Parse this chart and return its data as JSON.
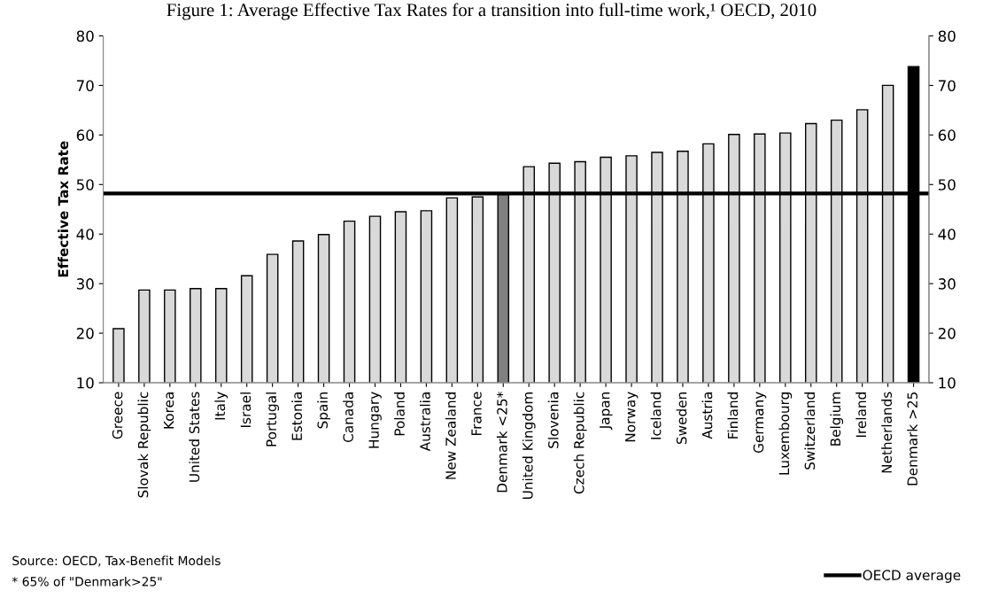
{
  "chart_data": {
    "type": "bar",
    "title": "Figure 1: Average Effective Tax Rates for a transition into full-time work,¹ OECD, 2010",
    "ylabel": "Effective Tax Rate",
    "categories": [
      "Greece",
      "Slovak Republic",
      "Korea",
      "United States",
      "Italy",
      "Israel",
      "Portugal",
      "Estonia",
      "Spain",
      "Canada",
      "Hungary",
      "Poland",
      "Australia",
      "New Zealand",
      "France",
      "Denmark <25*",
      "United Kingdom",
      "Slovenia",
      "Czech Republic",
      "Japan",
      "Norway",
      "Iceland",
      "Sweden",
      "Austria",
      "Finland",
      "Germany",
      "Luxembourg",
      "Switzerland",
      "Belgium",
      "Ireland",
      "Netherlands",
      "Denmark >25"
    ],
    "values": [
      20.9,
      28.7,
      28.7,
      29.0,
      29.0,
      31.6,
      35.9,
      38.6,
      39.9,
      42.6,
      43.6,
      44.5,
      44.7,
      47.3,
      47.5,
      48.0,
      53.6,
      54.3,
      54.6,
      55.5,
      55.8,
      56.5,
      56.7,
      58.2,
      60.1,
      60.2,
      60.4,
      62.3,
      63.0,
      65.1,
      70.0,
      73.8
    ],
    "colors": [
      "#d9d9d9",
      "#d9d9d9",
      "#d9d9d9",
      "#d9d9d9",
      "#d9d9d9",
      "#d9d9d9",
      "#d9d9d9",
      "#d9d9d9",
      "#d9d9d9",
      "#d9d9d9",
      "#d9d9d9",
      "#d9d9d9",
      "#d9d9d9",
      "#d9d9d9",
      "#d9d9d9",
      "#808080",
      "#d9d9d9",
      "#d9d9d9",
      "#d9d9d9",
      "#d9d9d9",
      "#d9d9d9",
      "#d9d9d9",
      "#d9d9d9",
      "#d9d9d9",
      "#d9d9d9",
      "#d9d9d9",
      "#d9d9d9",
      "#d9d9d9",
      "#d9d9d9",
      "#d9d9d9",
      "#d9d9d9",
      "#000000"
    ],
    "ylim": [
      10,
      80
    ],
    "yticks": [
      10,
      20,
      30,
      40,
      50,
      60,
      70,
      80
    ],
    "y2lim": [
      10,
      80
    ],
    "y2ticks": [
      10,
      20,
      30,
      40,
      50,
      60,
      70,
      80
    ],
    "ref_lines": [
      {
        "axis": "y",
        "value": 48.2,
        "label": "OECD average",
        "color": "#000000"
      }
    ],
    "annotations": [
      "Source: OECD, Tax-Benefit Models",
      "* 65% of \"Denmark>25\""
    ],
    "legend": "bottom right",
    "grid": false
  }
}
